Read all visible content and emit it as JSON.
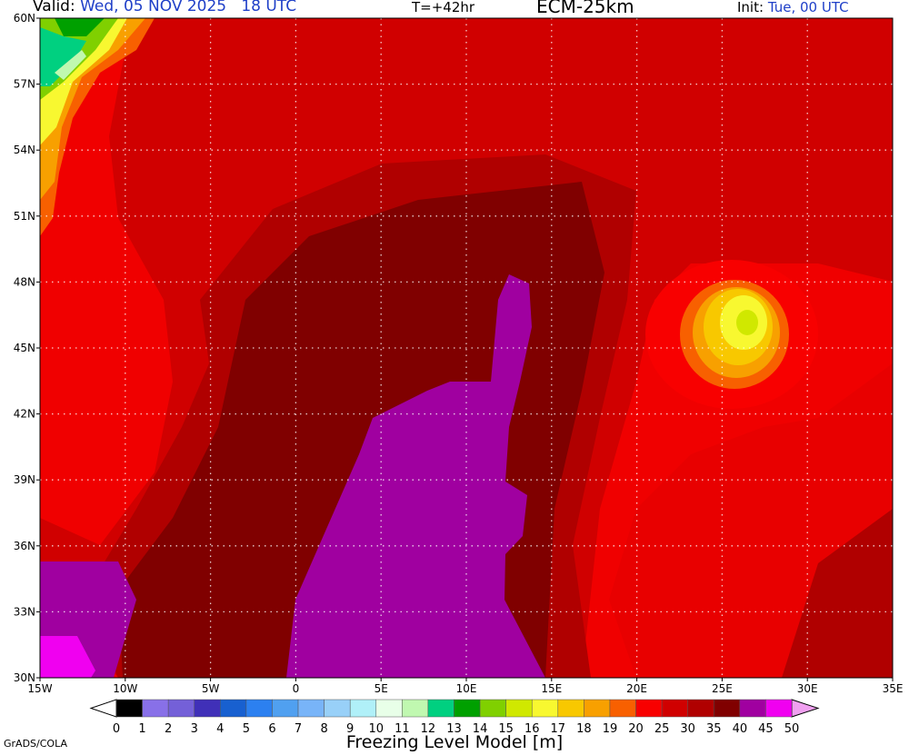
{
  "header": {
    "valid_label": "Valid:",
    "valid_time": "Wed, 05 NOV 2025   18 UTC",
    "forecast_hour": "T=+42hr",
    "model": "ECM-25km",
    "init_label": "Init:",
    "init_time": "Tue, 00 UTC"
  },
  "map": {
    "lon_labels": [
      "15W",
      "10W",
      "5W",
      "0",
      "5E",
      "10E",
      "15E",
      "20E",
      "25E",
      "30E",
      "35E"
    ],
    "lat_labels": [
      "60N",
      "57N",
      "54N",
      "51N",
      "48N",
      "45N",
      "42N",
      "39N",
      "36N",
      "33N",
      "30N"
    ],
    "grid": true,
    "domain": {
      "lon": [
        -15,
        35
      ],
      "lat": [
        30,
        60
      ]
    }
  },
  "colorbar": {
    "title": "Freezing Level Model [m]",
    "labels": [
      "0",
      "1",
      "2",
      "3",
      "4",
      "5",
      "6",
      "7",
      "8",
      "9",
      "10",
      "11",
      "12",
      "13",
      "14",
      "15",
      "16",
      "17",
      "18",
      "19",
      "20",
      "25",
      "30",
      "35",
      "40",
      "45",
      "50"
    ],
    "colors": [
      "#000000",
      "#8870e8",
      "#7460d8",
      "#4030b8",
      "#1860d0",
      "#2c80f0",
      "#50a0f0",
      "#78b4f8",
      "#98d0f8",
      "#b0f0f8",
      "#e8ffe8",
      "#c0f8b0",
      "#00d080",
      "#00a000",
      "#80d000",
      "#d0e800",
      "#f8f830",
      "#f8c800",
      "#f8a000",
      "#f86000",
      "#f80000",
      "#d00000",
      "#b00000",
      "#800000",
      "#a000a0",
      "#f000f0"
    ],
    "under_color": "#ffffff",
    "over_color": "#f0a0f0"
  },
  "credit": "GrADS/COLA"
}
